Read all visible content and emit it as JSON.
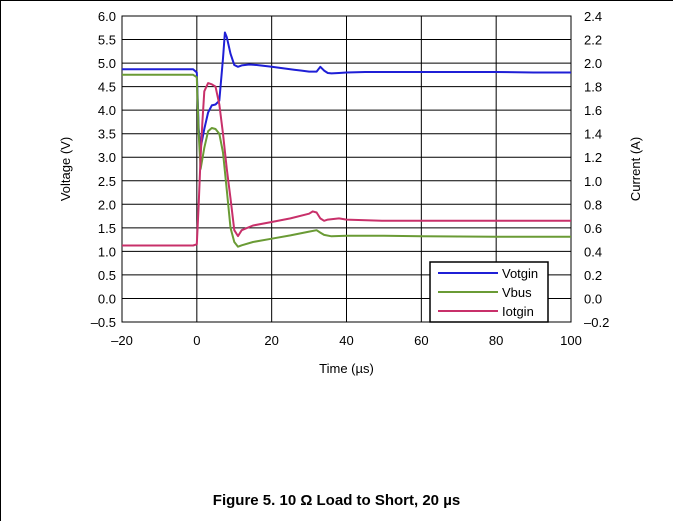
{
  "caption": "Figure 5. 10 Ω Load to Short, 20 µs",
  "chart_data": {
    "type": "line",
    "xlabel": "Time (µs)",
    "ylabel": "Voltage (V)",
    "y2label": "Current (A)",
    "xlim": [
      -20,
      100
    ],
    "ylim": [
      -0.5,
      6.0
    ],
    "y2lim": [
      -0.2,
      2.4
    ],
    "x_ticks": [
      -20,
      0,
      20,
      40,
      60,
      80,
      100
    ],
    "x_tick_labels": [
      "–20",
      "0",
      "20",
      "40",
      "60",
      "80",
      "100"
    ],
    "y_ticks": [
      -0.5,
      0,
      0.5,
      1,
      1.5,
      2,
      2.5,
      3,
      3.5,
      4,
      4.5,
      5,
      5.5,
      6
    ],
    "y_tick_labels": [
      "–0.5",
      "0.0",
      "0.5",
      "1.0",
      "1.5",
      "2.0",
      "2.5",
      "3.0",
      "3.5",
      "4.0",
      "4.5",
      "5.0",
      "5.5",
      "6.0"
    ],
    "y2_ticks": [
      -0.2,
      0,
      0.2,
      0.4,
      0.6,
      0.8,
      1.0,
      1.2,
      1.4,
      1.6,
      1.8,
      2.0,
      2.2,
      2.4
    ],
    "y2_tick_labels": [
      "–0.2",
      "0.0",
      "0.2",
      "0.4",
      "0.6",
      "0.8",
      "1.0",
      "1.2",
      "1.4",
      "1.6",
      "1.8",
      "2.0",
      "2.2",
      "2.4"
    ],
    "grid": true,
    "legend_position": "bottom-right",
    "series": [
      {
        "name": "Votgin",
        "color": "#1f1fd6",
        "axis": "left",
        "x": [
          -20,
          -1,
          0,
          0.5,
          1,
          2,
          3,
          4,
          5,
          6,
          7,
          7.5,
          8,
          9,
          10,
          11,
          12,
          14,
          16,
          18,
          20,
          22,
          24,
          26,
          28,
          30,
          32,
          33,
          34,
          35,
          36,
          38,
          40,
          45,
          50,
          60,
          70,
          80,
          90,
          100
        ],
        "y": [
          4.87,
          4.87,
          4.8,
          3.6,
          3.2,
          3.6,
          3.95,
          4.1,
          4.12,
          4.2,
          5.1,
          5.65,
          5.55,
          5.2,
          4.96,
          4.92,
          4.95,
          4.97,
          4.96,
          4.94,
          4.92,
          4.9,
          4.88,
          4.86,
          4.84,
          4.82,
          4.82,
          4.92,
          4.84,
          4.79,
          4.78,
          4.79,
          4.8,
          4.81,
          4.81,
          4.81,
          4.81,
          4.81,
          4.8,
          4.8
        ]
      },
      {
        "name": "Vbus",
        "color": "#6a9b35",
        "axis": "left",
        "x": [
          -20,
          -1,
          0,
          0.5,
          1,
          2,
          3,
          4,
          5,
          6,
          7,
          8,
          9,
          10,
          11,
          12,
          15,
          20,
          25,
          30,
          32,
          33,
          34,
          36,
          40,
          50,
          60,
          80,
          100
        ],
        "y": [
          4.75,
          4.75,
          4.7,
          3.5,
          2.75,
          3.2,
          3.55,
          3.62,
          3.6,
          3.5,
          3.1,
          2.3,
          1.5,
          1.2,
          1.1,
          1.13,
          1.2,
          1.27,
          1.34,
          1.42,
          1.45,
          1.4,
          1.35,
          1.32,
          1.33,
          1.33,
          1.32,
          1.31,
          1.31
        ]
      },
      {
        "name": "Iotgin",
        "color": "#c8306a",
        "axis": "right",
        "x": [
          -20,
          -1,
          0,
          0.5,
          1,
          1.5,
          2,
          3,
          4,
          5,
          6,
          7,
          8,
          9,
          10,
          11,
          12,
          15,
          20,
          25,
          30,
          31,
          32,
          33,
          34,
          35,
          38,
          40,
          50,
          60,
          80,
          100
        ],
        "y": [
          0.45,
          0.45,
          0.46,
          0.8,
          1.2,
          1.5,
          1.76,
          1.83,
          1.82,
          1.8,
          1.65,
          1.4,
          1.1,
          0.85,
          0.58,
          0.53,
          0.58,
          0.62,
          0.65,
          0.68,
          0.72,
          0.74,
          0.73,
          0.68,
          0.66,
          0.67,
          0.68,
          0.67,
          0.66,
          0.66,
          0.66,
          0.66
        ]
      }
    ]
  }
}
